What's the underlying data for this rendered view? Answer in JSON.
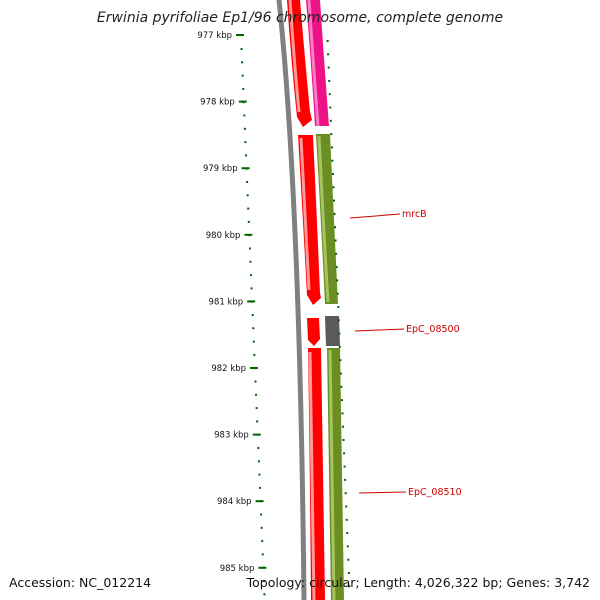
{
  "title": "Erwinia pyrifoliae Ep1/96 chromosome, complete genome",
  "accession_text": "Accession: NC_012214",
  "topology_text": "Topology: circular; Length: 4,026,322 bp; Genes: 3,742",
  "ruler": {
    "unit": "kbp",
    "labels": [
      "977 kbp",
      "978 kbp",
      "979 kbp",
      "980 kbp",
      "981 kbp",
      "982 kbp",
      "983 kbp",
      "984 kbp",
      "985 kbp"
    ]
  },
  "gene_labels": [
    {
      "name": "mrcB"
    },
    {
      "name": "EpC_08500"
    },
    {
      "name": "EpC_08510"
    }
  ],
  "colors": {
    "backbone": "#808080",
    "cds_red": "#ff0000",
    "cds_magenta": "#ee1289",
    "cds_olive": "#6b8e23",
    "cds_gray": "#555555",
    "ruler_green": "#006400",
    "label_red": "#cc0000"
  }
}
